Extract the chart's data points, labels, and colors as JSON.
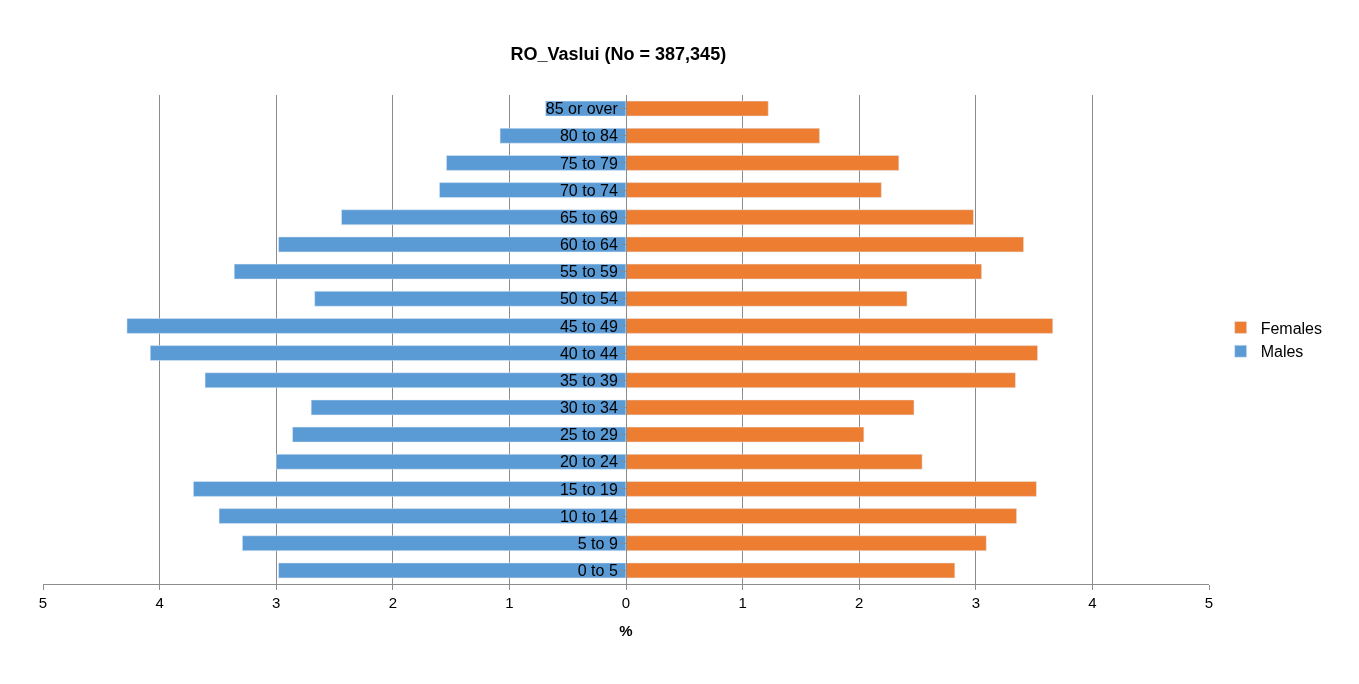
{
  "chart_data": {
    "type": "bar",
    "orientation": "horizontal",
    "title": "RO_Vaslui (No = 387,345)",
    "xlabel": "%",
    "categories": [
      "85 or over",
      "80 to 84",
      "75 to 79",
      "70 to 74",
      "65 to 69",
      "60 to 64",
      "55 to 59",
      "50 to 54",
      "45 to 49",
      "40 to 44",
      "35 to 39",
      "30 to 34",
      "25 to 29",
      "20 to 24",
      "15 to 19",
      "10 to 14",
      "5 to 9",
      "0 to 5"
    ],
    "series": [
      {
        "name": "Males",
        "color": "#5b9bd5",
        "values": [
          -0.69,
          -1.08,
          -1.54,
          -1.6,
          -2.44,
          -2.98,
          -3.36,
          -2.67,
          -4.28,
          -4.08,
          -3.61,
          -2.7,
          -2.86,
          -3.0,
          -3.71,
          -3.49,
          -3.29,
          -2.98
        ]
      },
      {
        "name": "Females",
        "color": "#ed7d31",
        "values": [
          1.22,
          1.66,
          2.34,
          2.19,
          2.98,
          3.41,
          3.05,
          2.41,
          3.66,
          3.53,
          3.34,
          2.47,
          2.04,
          2.54,
          3.52,
          3.35,
          3.09,
          2.82
        ]
      }
    ],
    "xlim": [
      -5,
      5
    ],
    "xticks": [
      {
        "value": -5,
        "label": "5"
      },
      {
        "value": -4,
        "label": "4"
      },
      {
        "value": -3,
        "label": "3"
      },
      {
        "value": -2,
        "label": "2"
      },
      {
        "value": -1,
        "label": "1"
      },
      0,
      1,
      2,
      3,
      4,
      5
    ],
    "stacked": true,
    "grid": "x",
    "legend": "right"
  }
}
